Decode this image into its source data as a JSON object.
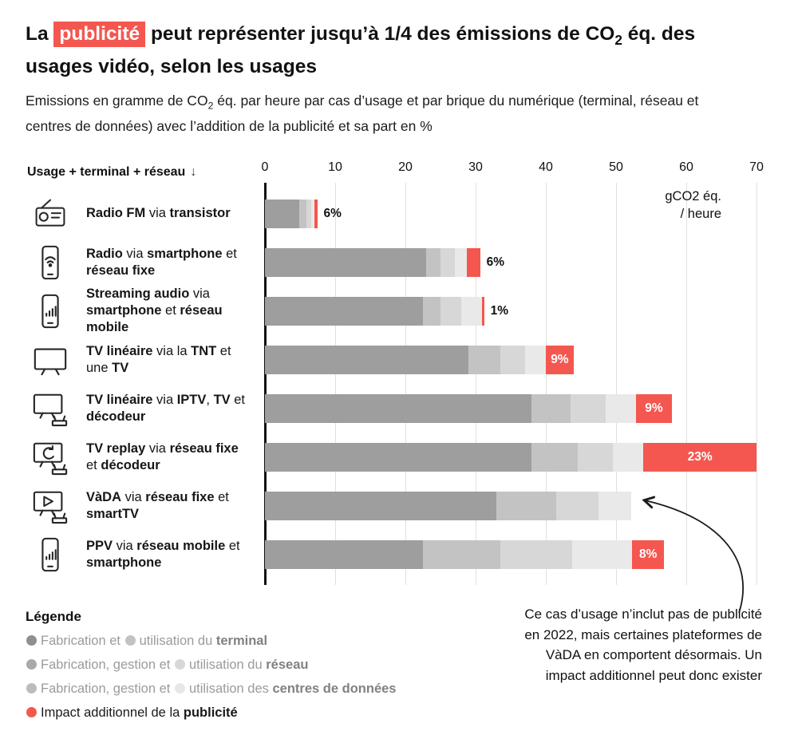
{
  "title_parts": [
    {
      "t": "La "
    },
    {
      "t": "publicité",
      "hl": true
    },
    {
      "t": " peut représenter jusqu’à 1/4 des émissions de CO"
    },
    {
      "t": "2",
      "sub": true
    },
    {
      "t": " éq. des usages vidéo, selon les usages"
    }
  ],
  "subtitle_parts": [
    {
      "t": "Emissions en gramme de CO"
    },
    {
      "t": "2",
      "sub": true
    },
    {
      "t": " éq. par heure par cas d’usage et par brique du numérique (terminal, réseau et centres de données) avec l’addition de la publicité et sa part en %"
    }
  ],
  "colors": {
    "accent_red": "#f4574f",
    "grays": [
      "#9e9e9e",
      "#c3c3c3",
      "#d7d7d7",
      "#e9e9e9"
    ],
    "axis": "#111111",
    "grid": "#e0e0e0"
  },
  "chart_data": {
    "type": "stacked_bar_horizontal",
    "title": "La publicité peut représenter jusqu’à 1/4 des émissions de CO2 éq. des usages vidéo, selon les usages",
    "subtitle": "Emissions en gramme de CO2 éq. par heure par cas d’usage et par brique du numérique (terminal, réseau et centres de données) avec l’addition de la publicité et sa part en %",
    "left_axis_title": "Usage + terminal + réseau",
    "left_axis_arrow": "↓",
    "x_ticks": [
      0,
      10,
      20,
      30,
      40,
      50,
      60,
      70
    ],
    "xlim": [
      0,
      70
    ],
    "unit_line1": "gCO2 éq.",
    "unit_line2": "/ heure",
    "segment_names": [
      "terminal",
      "réseau",
      "centres de données (fabrication/gestion)",
      "centres de données (utilisation)",
      "publicité"
    ],
    "rows": [
      {
        "label": "Radio FM via transistor",
        "icon": "radio-icon",
        "label_parts": [
          {
            "t": "Radio FM",
            "b": true
          },
          {
            "t": " via ",
            "b": false
          },
          {
            "t": "transistor",
            "b": true
          }
        ],
        "segments": [
          4.9,
          1.0,
          0.7,
          0.4
        ],
        "pub": 0.45,
        "pub_label": "6%",
        "label_inside": false
      },
      {
        "label": "Radio via smartphone et réseau fixe",
        "icon": "smartphone-wifi-icon",
        "label_parts": [
          {
            "t": "Radio",
            "b": true
          },
          {
            "t": " via ",
            "b": false
          },
          {
            "t": "smartphone",
            "b": true
          },
          {
            "t": " et ",
            "b": false
          },
          {
            "t": "réseau fixe",
            "b": true
          }
        ],
        "segments": [
          23,
          2.0,
          2.0,
          1.8
        ],
        "pub": 1.85,
        "pub_label": "6%",
        "label_inside": false
      },
      {
        "label": "Streaming audio via smartphone et réseau mobile",
        "icon": "smartphone-signal-icon",
        "label_parts": [
          {
            "t": "Streaming audio",
            "b": true
          },
          {
            "t": " via ",
            "b": false
          },
          {
            "t": "smartphone",
            "b": true
          },
          {
            "t": " et ",
            "b": false
          },
          {
            "t": "réseau mobile",
            "b": true
          }
        ],
        "segments": [
          22.5,
          2.5,
          3.0,
          2.9
        ],
        "pub": 0.31,
        "pub_label": "1%",
        "label_inside": false
      },
      {
        "label": "TV linéaire via la TNT et une TV",
        "icon": "tv-icon",
        "label_parts": [
          {
            "t": "TV linéaire",
            "b": true
          },
          {
            "t": " via la ",
            "b": false
          },
          {
            "t": "TNT",
            "b": true
          },
          {
            "t": " et une ",
            "b": false
          },
          {
            "t": "TV",
            "b": true
          }
        ],
        "segments": [
          29,
          4.5,
          3.5,
          3.0
        ],
        "pub": 3.96,
        "pub_label": "9%",
        "label_inside": true
      },
      {
        "label": "TV linéaire via IPTV, TV et décodeur",
        "icon": "tv-decoder-icon",
        "label_parts": [
          {
            "t": "TV linéaire",
            "b": true
          },
          {
            "t": " via ",
            "b": false
          },
          {
            "t": "IPTV",
            "b": true
          },
          {
            "t": ", ",
            "b": false
          },
          {
            "t": "TV",
            "b": true
          },
          {
            "t": " et ",
            "b": false
          },
          {
            "t": "décodeur",
            "b": true
          }
        ],
        "segments": [
          38,
          5.5,
          5.0,
          4.3
        ],
        "pub": 5.2,
        "pub_label": "9%",
        "label_inside": true
      },
      {
        "label": "TV replay via réseau fixe et décodeur",
        "icon": "tv-replay-icon",
        "label_parts": [
          {
            "t": "TV replay",
            "b": true
          },
          {
            "t": " via ",
            "b": false
          },
          {
            "t": "réseau fixe",
            "b": true
          },
          {
            "t": " et ",
            "b": false
          },
          {
            "t": "décodeur",
            "b": true
          }
        ],
        "segments": [
          38,
          6.5,
          5.0,
          4.4
        ],
        "pub": 16.1,
        "pub_label": "23%",
        "label_inside": true
      },
      {
        "label": "VàDA via réseau fixe et smartTV",
        "icon": "tv-play-icon",
        "label_parts": [
          {
            "t": "VàDA",
            "b": true
          },
          {
            "t": " via ",
            "b": false
          },
          {
            "t": "réseau fixe",
            "b": true
          },
          {
            "t": " et ",
            "b": false
          },
          {
            "t": "smartTV",
            "b": true
          }
        ],
        "segments": [
          33,
          8.5,
          6.0,
          4.7
        ],
        "pub": 0,
        "pub_label": null,
        "label_inside": false
      },
      {
        "label": "PPV via réseau mobile et smartphone",
        "icon": "smartphone-signal-icon",
        "label_parts": [
          {
            "t": "PPV",
            "b": true
          },
          {
            "t": " via ",
            "b": false
          },
          {
            "t": "réseau mobile",
            "b": true
          },
          {
            "t": " et ",
            "b": false
          },
          {
            "t": "smartphone",
            "b": true
          }
        ],
        "segments": [
          22.5,
          11,
          10.3,
          8.5
        ],
        "pub": 4.55,
        "pub_label": "8%",
        "label_inside": true
      }
    ]
  },
  "legend": {
    "title": "Légende",
    "items": [
      {
        "muted": true,
        "parts": [
          {
            "dot": "#8f8f8f"
          },
          {
            "t": "Fabrication et "
          },
          {
            "dot": "#c2c2c2"
          },
          {
            "t": "utilisation du "
          },
          {
            "t": "terminal",
            "b": true
          }
        ]
      },
      {
        "muted": true,
        "parts": [
          {
            "dot": "#a9a9a9"
          },
          {
            "t": "Fabrication, gestion et "
          },
          {
            "dot": "#d8d8d8"
          },
          {
            "t": "utilisation du "
          },
          {
            "t": "réseau",
            "b": true
          }
        ]
      },
      {
        "muted": true,
        "parts": [
          {
            "dot": "#bcbcbc"
          },
          {
            "t": "Fabrication, gestion et "
          },
          {
            "dot": "#e7e7e7"
          },
          {
            "t": "utilisation des "
          },
          {
            "t": "centres de données",
            "b": true
          }
        ]
      },
      {
        "muted": false,
        "parts": [
          {
            "dot": "#f4574f"
          },
          {
            "t": "Impact additionnel de la "
          },
          {
            "t": "publicité",
            "b": true
          }
        ]
      }
    ]
  },
  "annotation": {
    "text": "Ce cas d’usage n’inclut pas de publicité en 2022, mais certaines plateformes de VàDA en comportent désormais. Un impact additionnel peut donc exister"
  }
}
